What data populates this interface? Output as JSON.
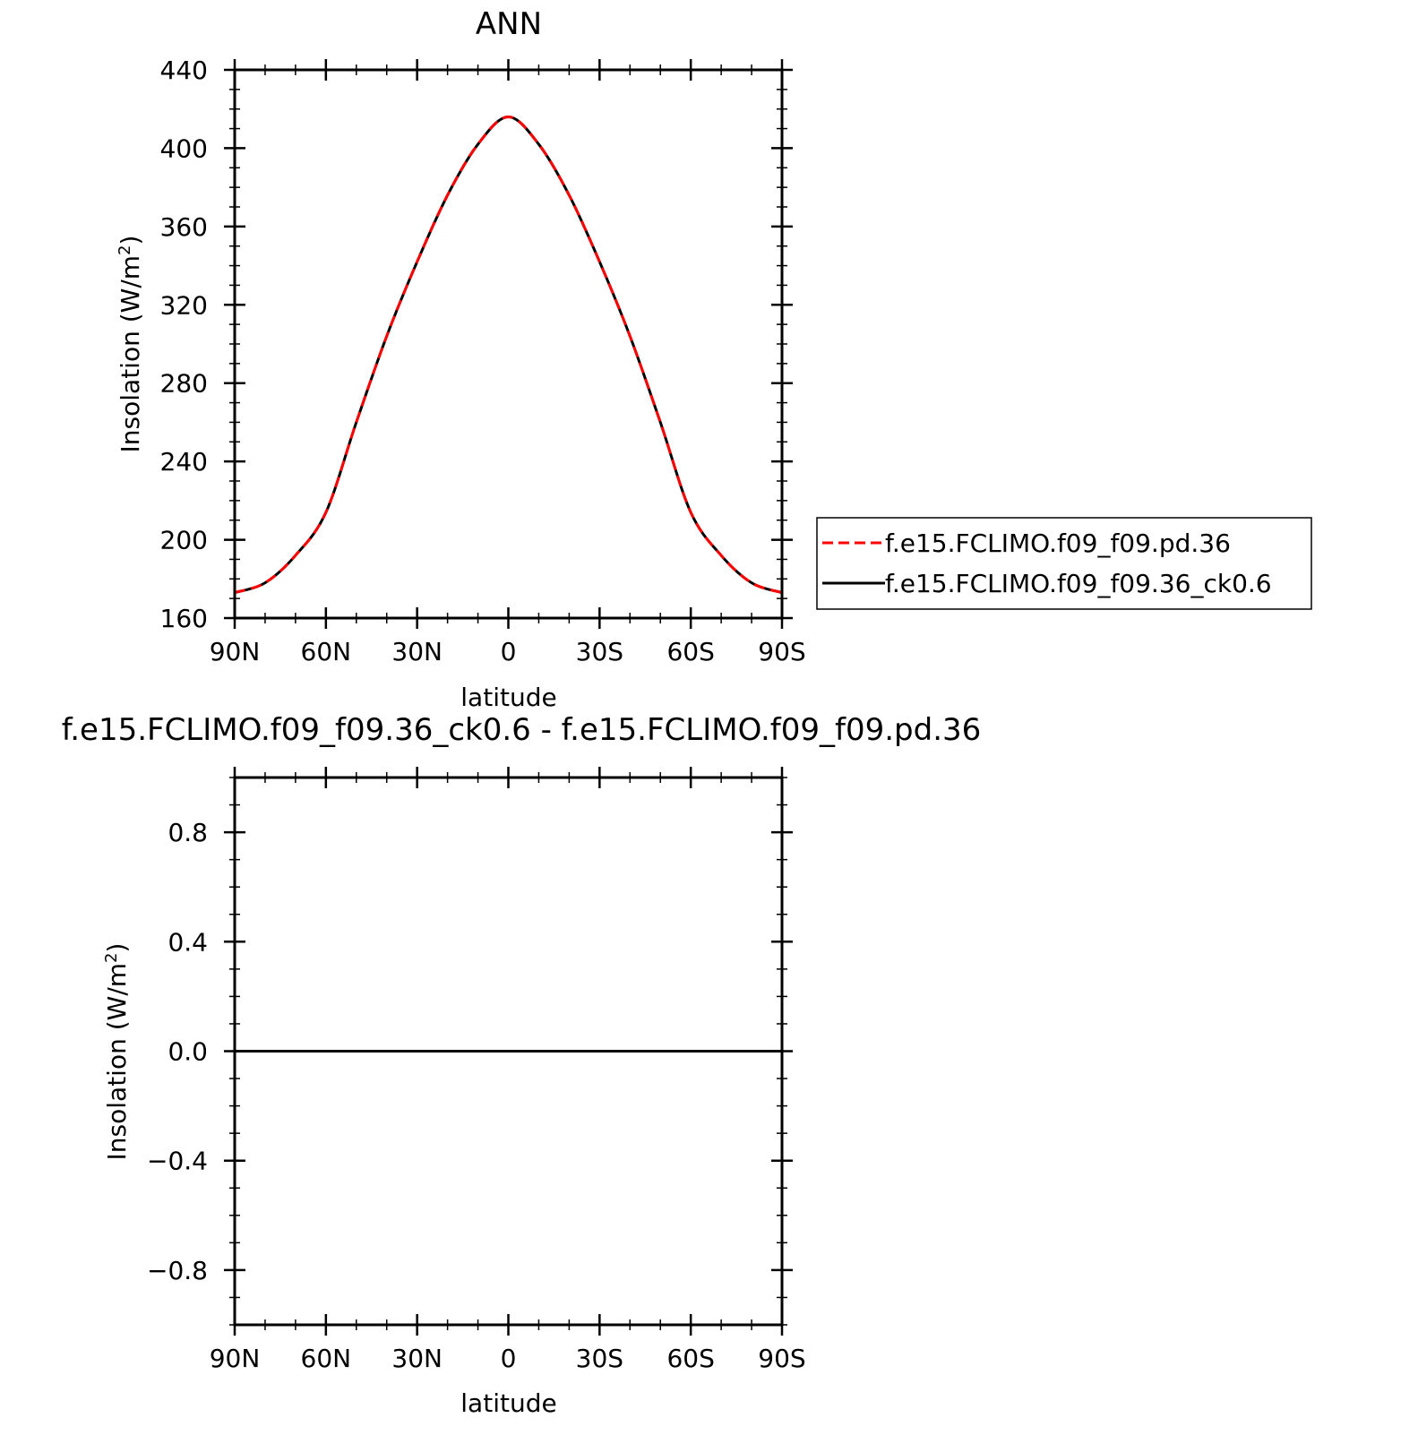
{
  "top_panel": {
    "title": "ANN",
    "ylabel_main": "Insolation  (W/m",
    "ylabel_sup": "2",
    "ylabel_close": ")",
    "xlabel": "latitude"
  },
  "bottom_panel": {
    "title": "f.e15.FCLIMO.f09_f09.36_ck0.6 - f.e15.FCLIMO.f09_f09.pd.36",
    "ylabel_main": "Insolation  (W/m",
    "ylabel_sup": "2",
    "ylabel_close": ")",
    "xlabel": "latitude"
  },
  "legend": {
    "items": [
      {
        "label": "f.e15.FCLIMO.f09_f09.pd.36",
        "color": "#ff0000",
        "dash": "dashed"
      },
      {
        "label": "f.e15.FCLIMO.f09_f09.36_ck0.6",
        "color": "#000000",
        "dash": "solid"
      }
    ]
  },
  "chart_data": [
    {
      "type": "line",
      "title": "ANN",
      "xlabel": "latitude",
      "ylabel": "Insolation (W/m2)",
      "xlim": [
        90,
        -90
      ],
      "ylim": [
        160,
        440
      ],
      "xticks": [
        90,
        60,
        30,
        0,
        -30,
        -60,
        -90
      ],
      "xtick_labels": [
        "90N",
        "60N",
        "30N",
        "0",
        "30S",
        "60S",
        "90S"
      ],
      "yticks": [
        160,
        200,
        240,
        280,
        320,
        360,
        400,
        440
      ],
      "ytick_labels": [
        "160",
        "200",
        "240",
        "280",
        "320",
        "360",
        "400",
        "440"
      ],
      "x": [
        90,
        80,
        70,
        60,
        50,
        40,
        30,
        20,
        10,
        0,
        -10,
        -20,
        -30,
        -40,
        -50,
        -60,
        -70,
        -80,
        -90
      ],
      "series": [
        {
          "name": "f.e15.FCLIMO.f09_f09.pd.36",
          "color": "#ff0000",
          "dash": "dashed",
          "values": [
            173,
            178,
            192,
            214,
            260,
            304,
            342,
            376,
            402,
            416,
            402,
            376,
            342,
            304,
            260,
            214,
            192,
            178,
            173
          ]
        },
        {
          "name": "f.e15.FCLIMO.f09_f09.36_ck0.6",
          "color": "#000000",
          "dash": "solid",
          "values": [
            173,
            178,
            192,
            214,
            260,
            304,
            342,
            376,
            402,
            416,
            402,
            376,
            342,
            304,
            260,
            214,
            192,
            178,
            173
          ]
        }
      ]
    },
    {
      "type": "line",
      "title": "f.e15.FCLIMO.f09_f09.36_ck0.6 - f.e15.FCLIMO.f09_f09.pd.36",
      "xlabel": "latitude",
      "ylabel": "Insolation (W/m2)",
      "xlim": [
        90,
        -90
      ],
      "ylim": [
        -1,
        1
      ],
      "xticks": [
        90,
        60,
        30,
        0,
        -30,
        -60,
        -90
      ],
      "xtick_labels": [
        "90N",
        "60N",
        "30N",
        "0",
        "30S",
        "60S",
        "90S"
      ],
      "yticks": [
        -0.8,
        -0.4,
        0.0,
        0.4,
        0.8
      ],
      "ytick_labels": [
        "−0.8",
        "−0.4",
        "0.0",
        "0.4",
        "0.8"
      ],
      "x": [
        90,
        -90
      ],
      "series": [
        {
          "color": "#000000",
          "dash": "solid",
          "values": [
            0,
            0
          ]
        }
      ]
    }
  ]
}
